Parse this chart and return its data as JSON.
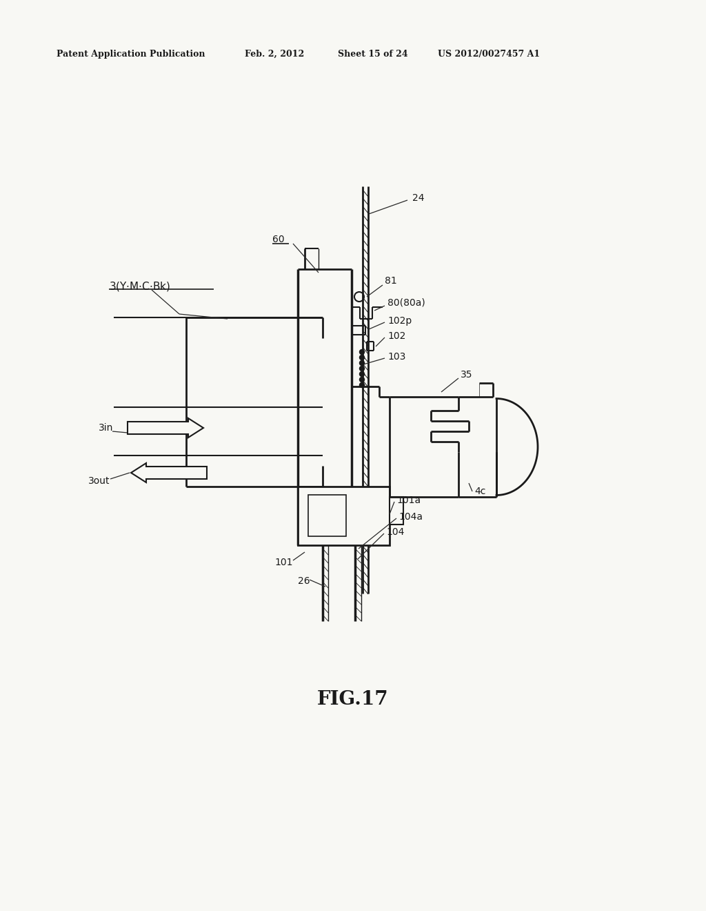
{
  "bg_color": "#f8f8f4",
  "header_text": "Patent Application Publication",
  "header_date": "Feb. 2, 2012",
  "header_sheet": "Sheet 15 of 24",
  "header_patent": "US 2012/0027457 A1",
  "figure_label": "FIG.17"
}
